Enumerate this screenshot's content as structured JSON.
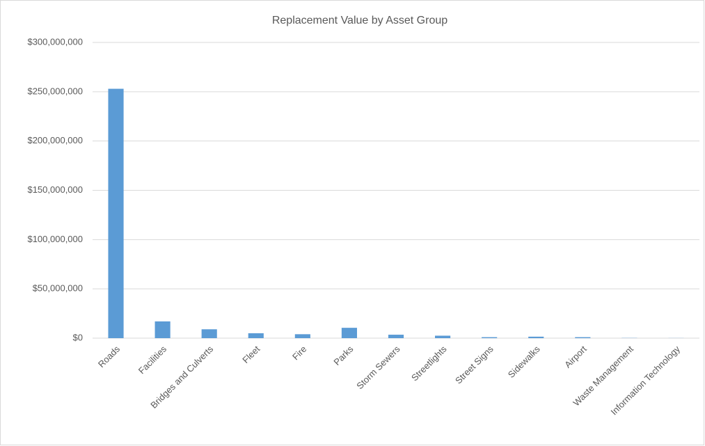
{
  "chart_data": {
    "type": "bar",
    "title": "Replacement Value by Asset Group",
    "categories": [
      "Roads",
      "Facilities",
      "Bridges and Culverts",
      "Fleet",
      "Fire",
      "Parks",
      "Storm Sewers",
      "Streetlights",
      "Street Signs",
      "Sidewalks",
      "Airport",
      "Waste Management",
      "Information Technology"
    ],
    "values": [
      253000000,
      17000000,
      9000000,
      5000000,
      4000000,
      10500000,
      3500000,
      2500000,
      1000000,
      1500000,
      1000000,
      200000,
      100000
    ],
    "color": "#5b9bd5",
    "ylim": [
      0,
      300000000
    ],
    "yticks": [
      {
        "value": 0,
        "label": "$0"
      },
      {
        "value": 50000000,
        "label": "$50,000,000"
      },
      {
        "value": 100000000,
        "label": "$100,000,000"
      },
      {
        "value": 150000000,
        "label": "$150,000,000"
      },
      {
        "value": 200000000,
        "label": "$200,000,000"
      },
      {
        "value": 250000000,
        "label": "$250,000,000"
      },
      {
        "value": 300000000,
        "label": "$300,000,000"
      }
    ],
    "grid": true
  }
}
